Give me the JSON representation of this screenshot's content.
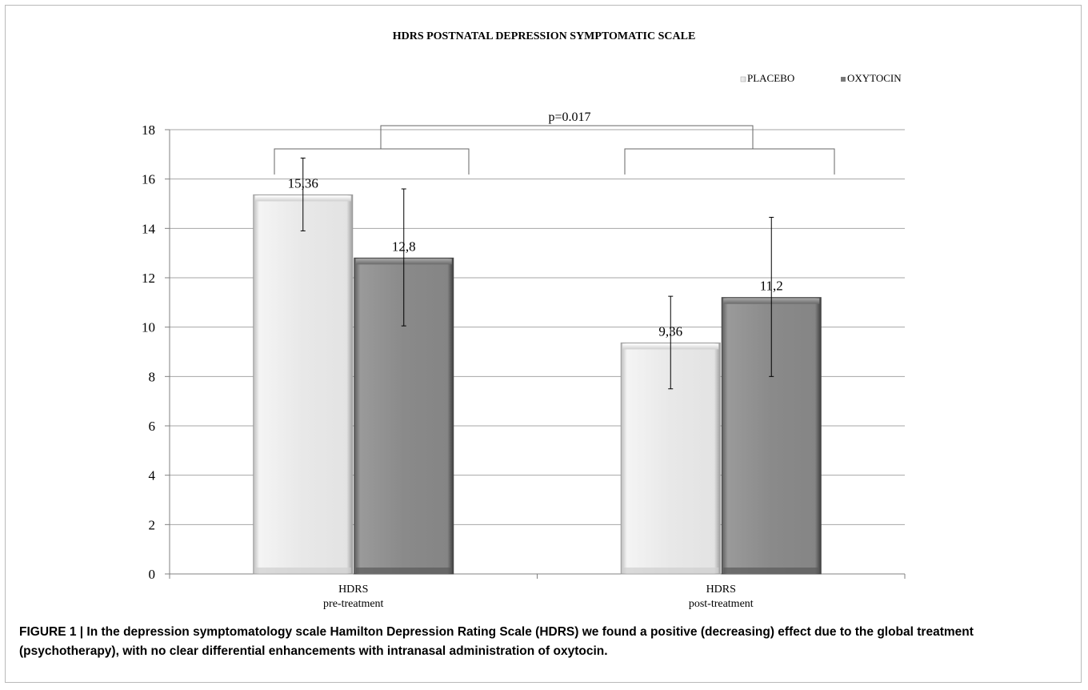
{
  "chart_data": {
    "type": "bar",
    "title": "HDRS POSTNATAL DEPRESSION SYMPTOMATIC SCALE",
    "categories": [
      [
        "HDRS",
        "pre-treatment"
      ],
      [
        "HDRS",
        "post-treatment"
      ]
    ],
    "series": [
      {
        "name": "PLACEBO",
        "values": [
          15.36,
          9.36
        ],
        "value_labels": [
          "15,36",
          "9,36"
        ],
        "error_low": [
          13.9,
          7.5
        ],
        "error_high": [
          16.85,
          11.25
        ],
        "color": "#e6e6e6"
      },
      {
        "name": "OXYTOCIN",
        "values": [
          12.8,
          11.2
        ],
        "value_labels": [
          "12,8",
          "11,2"
        ],
        "error_low": [
          10.05,
          8.0
        ],
        "error_high": [
          15.6,
          14.45
        ],
        "color": "#8a8a8a"
      }
    ],
    "ylim": [
      0,
      18
    ],
    "yticks": [
      0,
      2,
      4,
      6,
      8,
      10,
      12,
      14,
      16,
      18
    ],
    "grid": true,
    "legend": "top-right",
    "annotation": "p=0.017"
  },
  "caption": "FIGURE 1 | In the  depression symptomatology scale Hamilton Depression Rating Scale (HDRS) we found a positive (decreasing) effect due to the global treatment (psychotherapy), with no clear differential enhancements with intranasal administration of oxytocin."
}
